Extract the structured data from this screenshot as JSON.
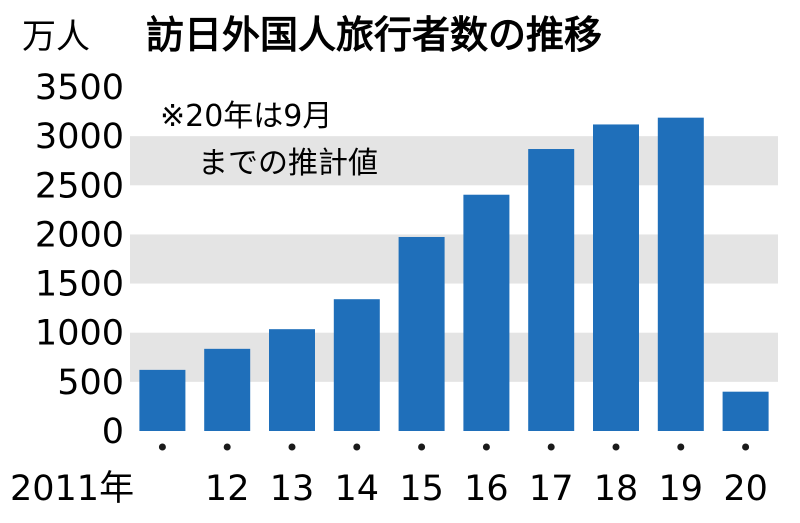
{
  "chart_data": {
    "type": "bar",
    "title": "訪日外国人旅行者数の推移",
    "ylabel": "万人",
    "xlabel": "",
    "ylim": [
      0,
      3500
    ],
    "yticks": [
      0,
      500,
      1000,
      1500,
      2000,
      2500,
      3000,
      3500
    ],
    "categories": [
      "2011年",
      "12",
      "13",
      "14",
      "15",
      "16",
      "17",
      "18",
      "19",
      "20"
    ],
    "values": [
      622,
      836,
      1036,
      1341,
      1974,
      2404,
      2869,
      3119,
      3188,
      400
    ],
    "note_lines": [
      "※20年は9月",
      "までの推計値"
    ],
    "bar_color": "#1f6fba",
    "band_color": "#e4e4e4",
    "grid": "alternating horizontal bands"
  }
}
